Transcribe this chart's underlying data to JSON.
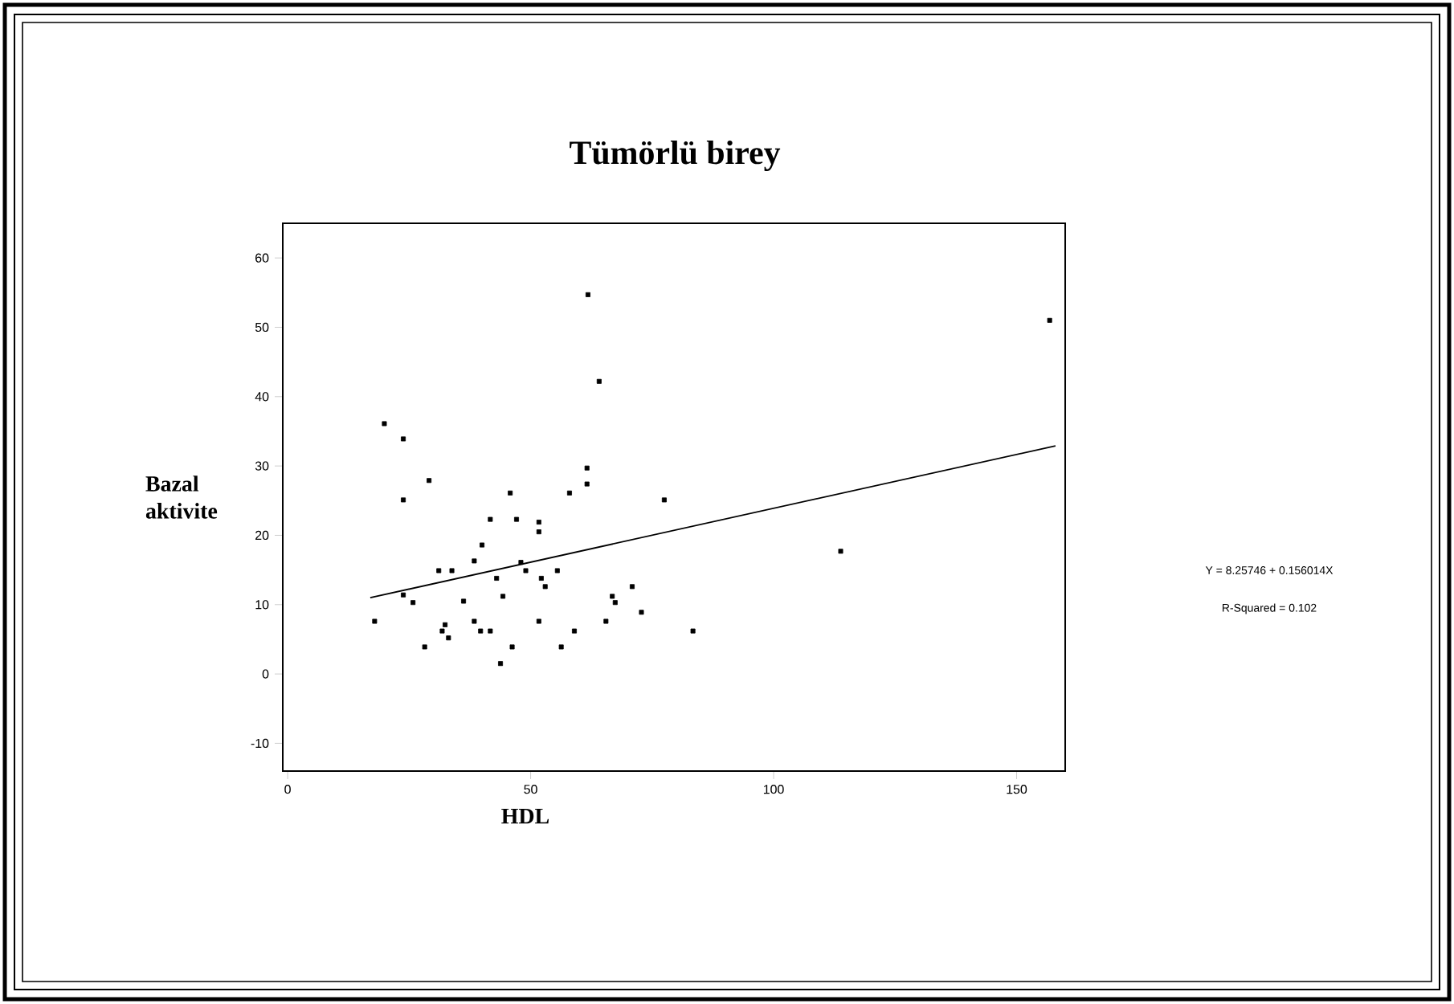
{
  "chart_data": {
    "type": "scatter",
    "title": "Tümörlü birey",
    "xlabel": "HDL",
    "ylabel": "Bazal aktivite",
    "annotations": [
      "Y = 8.25746 + 0.156014X",
      "R-Squared = 0.102"
    ],
    "xlim": [
      -1,
      160
    ],
    "ylim": [
      -14,
      65
    ],
    "xticks": [
      0,
      50,
      100,
      150
    ],
    "yticks": [
      -10,
      0,
      10,
      20,
      30,
      40,
      50,
      60
    ],
    "grid": false,
    "series": [
      {
        "color": "#000000",
        "marker": "square",
        "x": [
          19.9,
          23.8,
          29.1,
          23.8,
          45.8,
          58.0,
          61.6,
          61.6,
          61.8,
          41.7,
          47.1,
          51.7,
          51.7,
          40.0,
          38.4,
          31.1,
          33.8,
          48.0,
          49.0,
          55.5,
          43.0,
          52.2,
          53.0,
          23.8,
          25.8,
          36.2,
          44.3,
          17.9,
          32.4,
          31.8,
          33.1,
          38.4,
          39.7,
          41.7,
          51.7,
          59.0,
          28.2,
          46.2,
          56.3,
          43.8,
          64.1,
          77.5,
          70.9,
          66.8,
          67.4,
          72.8,
          65.5,
          83.4,
          113.8,
          156.8
        ],
        "values": [
          36.1,
          33.9,
          27.9,
          25.1,
          26.1,
          26.1,
          29.7,
          27.4,
          54.7,
          22.3,
          22.3,
          21.9,
          20.5,
          18.6,
          16.3,
          14.9,
          14.9,
          16.1,
          14.9,
          14.9,
          13.8,
          13.8,
          12.6,
          11.4,
          10.3,
          10.5,
          11.2,
          7.6,
          7.1,
          6.2,
          5.2,
          7.6,
          6.2,
          6.2,
          7.6,
          6.2,
          3.9,
          3.9,
          3.9,
          1.5,
          42.2,
          25.1,
          12.6,
          11.2,
          10.3,
          8.9,
          7.6,
          6.2,
          17.7,
          51.0
        ]
      },
      {
        "type": "line",
        "color": "#000000",
        "x": [
          17,
          158
        ],
        "values": [
          11.0,
          32.9
        ],
        "line_style": "solid"
      }
    ]
  }
}
